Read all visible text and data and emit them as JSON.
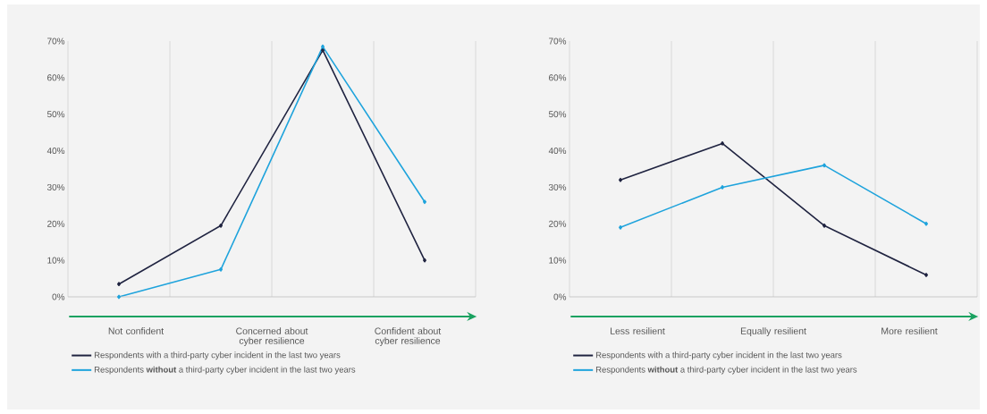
{
  "chart_data": [
    {
      "type": "line",
      "categories": [
        null,
        null,
        null,
        null
      ],
      "series": [
        {
          "name": "Respondents with a third-party cyber incident in the last two years",
          "color": "#1f2340",
          "values": [
            3.5,
            19.5,
            67.5,
            10
          ]
        },
        {
          "name": "Respondents **without** a third-party cyber incident in the last two years",
          "color": "#1ea3dc",
          "values": [
            0,
            7.5,
            68.5,
            26
          ]
        }
      ],
      "ylim": [
        0,
        70
      ],
      "yticks": [
        {
          "value": 0,
          "label": "0%"
        },
        {
          "value": 10,
          "label": "10%"
        },
        {
          "value": 20,
          "label": "20%"
        },
        {
          "value": 30,
          "label": "30%"
        },
        {
          "value": 40,
          "label": "40%"
        },
        {
          "value": 50,
          "label": "50%"
        },
        {
          "value": 60,
          "label": "60%"
        },
        {
          "value": 70,
          "label": "70%"
        }
      ],
      "annotations": [
        "Not confident",
        "Concerned about cyber resilience",
        "Confident about cyber resilience"
      ],
      "grid": "x",
      "legend": "bottom",
      "tick_labels": "y",
      "marker": "diamond",
      "line_style": "solid"
    },
    {
      "type": "line",
      "categories": [
        null,
        null,
        null,
        null
      ],
      "series": [
        {
          "name": "Respondents with a third-party cyber incident in the last two years",
          "color": "#1f2340",
          "values": [
            32,
            42,
            19.5,
            6
          ]
        },
        {
          "name": "Respondents **without** a third-party cyber incident in the last two years",
          "color": "#1ea3dc",
          "values": [
            19,
            30,
            36,
            20
          ]
        }
      ],
      "ylim": [
        0,
        70
      ],
      "yticks": [
        {
          "value": 0,
          "label": "0%"
        },
        {
          "value": 10,
          "label": "10%"
        },
        {
          "value": 20,
          "label": "20%"
        },
        {
          "value": 30,
          "label": "30%"
        },
        {
          "value": 40,
          "label": "40%"
        },
        {
          "value": 50,
          "label": "50%"
        },
        {
          "value": 60,
          "label": "60%"
        },
        {
          "value": 70,
          "label": "70%"
        }
      ],
      "annotations": [
        "Less resilient",
        "Equally resilient",
        "More resilient"
      ],
      "grid": "x",
      "legend": "bottom",
      "tick_labels": "y",
      "marker": "diamond",
      "line_style": "solid"
    }
  ]
}
